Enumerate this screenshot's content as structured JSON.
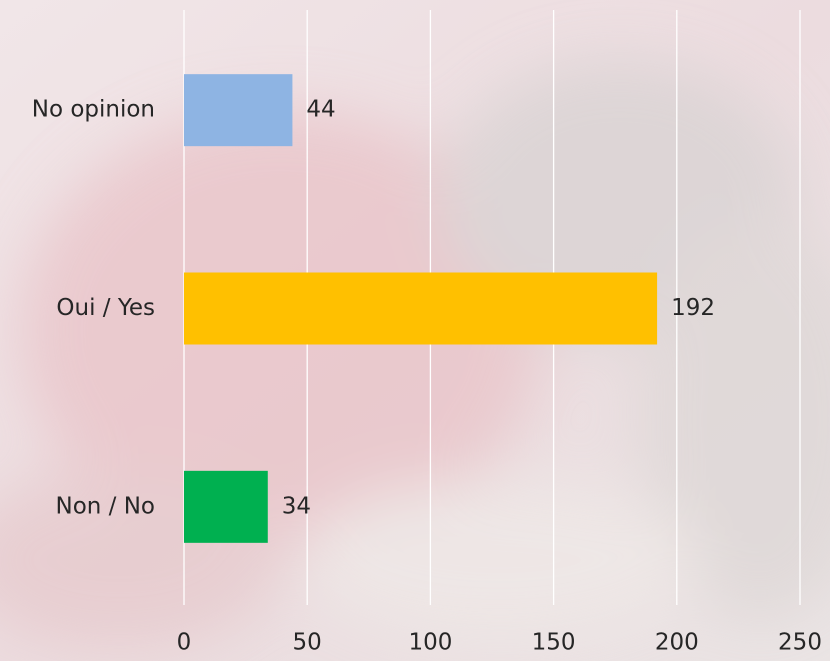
{
  "chart_data": {
    "type": "bar",
    "orientation": "horizontal",
    "categories": [
      "No opinion",
      "Oui / Yes",
      "Non / No"
    ],
    "values": [
      44,
      192,
      34
    ],
    "colors": [
      "#8eb4e3",
      "#ffc000",
      "#00b050"
    ],
    "xlim": [
      0,
      250
    ],
    "xticks": [
      0,
      50,
      100,
      150,
      200,
      250
    ],
    "grid": true
  }
}
